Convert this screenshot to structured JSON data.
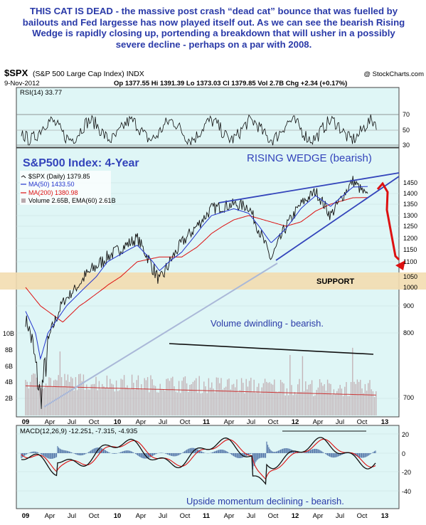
{
  "headline": "THIS CAT IS DEAD - the massive post crash “dead cat” bounce that was fuelled by bailouts and Fed largesse has now played itself out. As we can see the bearish Rising Wedge is rapidly closing up, portending a breakdown that will usher in a possibly severe decline - perhaps on a par with 2008.",
  "header": {
    "symbol": "$SPX",
    "name": "(S&P 500 Large Cap Index) INDX",
    "source": "@ StockCharts.com",
    "date": "9-Nov-2012",
    "quote": "Op 1377.55   Hi 1391.39   Lo 1373.03   Cl 1379.85   Vol 2.7B   Chg +2.34 (+0.17%)"
  },
  "rsi": {
    "label": "RSI(14) 33.77",
    "ticks": [
      "70",
      "50",
      "30"
    ]
  },
  "annotations": {
    "wedge": "RISING WEDGE (bearish)",
    "title": "S&P500 Index: 4-Year",
    "support": "SUPPORT",
    "volume": "Volume dwindling - bearish.",
    "momentum": "Upside momentum declining - bearish."
  },
  "legend": {
    "price": "$SPX (Daily) 1379.85",
    "ma50": "MA(50) 1433.50",
    "ma200": "MA(200) 1380.98",
    "volume": "Volume 2.65B, EMA(60) 2.61B"
  },
  "macd": {
    "label": "MACD(12,26,9) -12.251, -7.315, -4.935",
    "ticks": [
      "20",
      "0",
      "-20",
      "-40"
    ]
  },
  "colors": {
    "bg": "#dff6f6",
    "price": "#111111",
    "ma50": "#2233cc",
    "ma200": "#dd1111",
    "wedge": "#3344bb",
    "support": "#f3ddb0",
    "arrow": "#dd1111",
    "text": "#2a3aa8"
  },
  "chart_data": {
    "type": "line",
    "title": "S&P500 Index: 4-Year",
    "y_axis_ticks": [
      700,
      800,
      900,
      1000,
      1050,
      1100,
      1150,
      1200,
      1250,
      1300,
      1350,
      1400,
      1450
    ],
    "volume_axis_ticks": [
      "2B",
      "4B",
      "6B",
      "8B",
      "10B"
    ],
    "x_axis_ticks": [
      "09",
      "Apr",
      "Jul",
      "Oct",
      "10",
      "Apr",
      "Jul",
      "Oct",
      "11",
      "Apr",
      "Jul",
      "Oct",
      "12",
      "Apr",
      "Jul",
      "Oct",
      "13"
    ],
    "series": [
      {
        "name": "$SPX (Daily)",
        "x": [
          "2009-01",
          "2009-03",
          "2009-06",
          "2009-09",
          "2009-12",
          "2010-04",
          "2010-07",
          "2010-10",
          "2010-12",
          "2011-02",
          "2011-05",
          "2011-07",
          "2011-10",
          "2011-12",
          "2012-02",
          "2012-04",
          "2012-06",
          "2012-09",
          "2012-11"
        ],
        "values": [
          850,
          700,
          920,
          1050,
          1120,
          1200,
          1030,
          1180,
          1250,
          1330,
          1350,
          1340,
          1110,
          1250,
          1350,
          1410,
          1300,
          1460,
          1380
        ]
      },
      {
        "name": "MA(50)",
        "values": [
          880,
          760,
          880,
          1000,
          1100,
          1170,
          1070,
          1140,
          1220,
          1300,
          1330,
          1310,
          1180,
          1240,
          1330,
          1390,
          1340,
          1430,
          1433
        ]
      },
      {
        "name": "MA(200)",
        "values": [
          1000,
          900,
          840,
          920,
          1010,
          1100,
          1120,
          1120,
          1160,
          1220,
          1280,
          1300,
          1270,
          1250,
          1270,
          1320,
          1350,
          1380,
          1381
        ]
      }
    ],
    "rsi_range": [
      30,
      70
    ],
    "macd_range": [
      -40,
      20
    ],
    "volume_trend": "declining",
    "support_level": 1050
  }
}
